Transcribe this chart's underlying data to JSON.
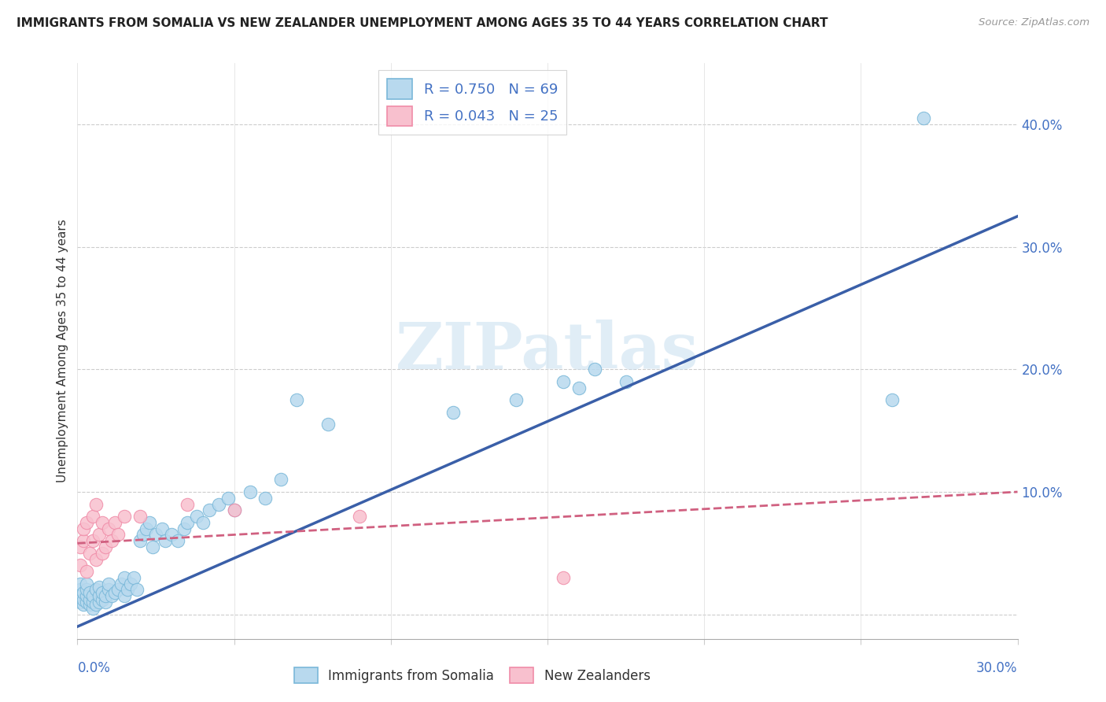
{
  "title": "IMMIGRANTS FROM SOMALIA VS NEW ZEALANDER UNEMPLOYMENT AMONG AGES 35 TO 44 YEARS CORRELATION CHART",
  "source": "Source: ZipAtlas.com",
  "ylabel": "Unemployment Among Ages 35 to 44 years",
  "xlim": [
    0.0,
    0.3
  ],
  "ylim": [
    -0.02,
    0.45
  ],
  "somalia_color": "#7ab8d9",
  "somalia_color_fill": "#b8d9ee",
  "nz_color": "#f08ca8",
  "nz_color_fill": "#f8c0ce",
  "somalia_R": 0.75,
  "somalia_N": 69,
  "nz_R": 0.043,
  "nz_N": 25,
  "trendline_somalia_color": "#3a5fa8",
  "trendline_nz_color": "#d06080",
  "watermark": "ZIPatlas",
  "legend_label_somalia": "Immigrants from Somalia",
  "legend_label_nz": "New Zealanders",
  "somalia_x": [
    0.001,
    0.001,
    0.001,
    0.001,
    0.002,
    0.002,
    0.002,
    0.003,
    0.003,
    0.003,
    0.003,
    0.004,
    0.004,
    0.004,
    0.005,
    0.005,
    0.005,
    0.006,
    0.006,
    0.007,
    0.007,
    0.007,
    0.008,
    0.008,
    0.009,
    0.009,
    0.01,
    0.01,
    0.011,
    0.012,
    0.013,
    0.014,
    0.015,
    0.015,
    0.016,
    0.017,
    0.018,
    0.019,
    0.02,
    0.021,
    0.022,
    0.023,
    0.024,
    0.025,
    0.027,
    0.028,
    0.03,
    0.032,
    0.034,
    0.035,
    0.038,
    0.04,
    0.042,
    0.045,
    0.048,
    0.05,
    0.055,
    0.06,
    0.065,
    0.07,
    0.08,
    0.12,
    0.14,
    0.155,
    0.16,
    0.165,
    0.175,
    0.26,
    0.27
  ],
  "somalia_y": [
    0.01,
    0.015,
    0.02,
    0.025,
    0.008,
    0.012,
    0.018,
    0.01,
    0.015,
    0.02,
    0.025,
    0.008,
    0.012,
    0.018,
    0.005,
    0.01,
    0.015,
    0.008,
    0.02,
    0.01,
    0.015,
    0.022,
    0.012,
    0.018,
    0.01,
    0.015,
    0.02,
    0.025,
    0.015,
    0.018,
    0.02,
    0.025,
    0.03,
    0.015,
    0.02,
    0.025,
    0.03,
    0.02,
    0.06,
    0.065,
    0.07,
    0.075,
    0.055,
    0.065,
    0.07,
    0.06,
    0.065,
    0.06,
    0.07,
    0.075,
    0.08,
    0.075,
    0.085,
    0.09,
    0.095,
    0.085,
    0.1,
    0.095,
    0.11,
    0.175,
    0.155,
    0.165,
    0.175,
    0.19,
    0.185,
    0.2,
    0.19,
    0.175,
    0.405
  ],
  "nz_x": [
    0.001,
    0.001,
    0.002,
    0.002,
    0.003,
    0.003,
    0.004,
    0.005,
    0.005,
    0.006,
    0.006,
    0.007,
    0.008,
    0.008,
    0.009,
    0.01,
    0.011,
    0.012,
    0.013,
    0.015,
    0.02,
    0.035,
    0.05,
    0.09,
    0.155
  ],
  "nz_y": [
    0.04,
    0.055,
    0.06,
    0.07,
    0.035,
    0.075,
    0.05,
    0.06,
    0.08,
    0.045,
    0.09,
    0.065,
    0.05,
    0.075,
    0.055,
    0.07,
    0.06,
    0.075,
    0.065,
    0.08,
    0.08,
    0.09,
    0.085,
    0.08,
    0.03
  ],
  "trendline_somalia_x0": 0.0,
  "trendline_somalia_y0": -0.01,
  "trendline_somalia_x1": 0.3,
  "trendline_somalia_y1": 0.325,
  "trendline_nz_x0": 0.0,
  "trendline_nz_y0": 0.058,
  "trendline_nz_x1": 0.3,
  "trendline_nz_y1": 0.1
}
